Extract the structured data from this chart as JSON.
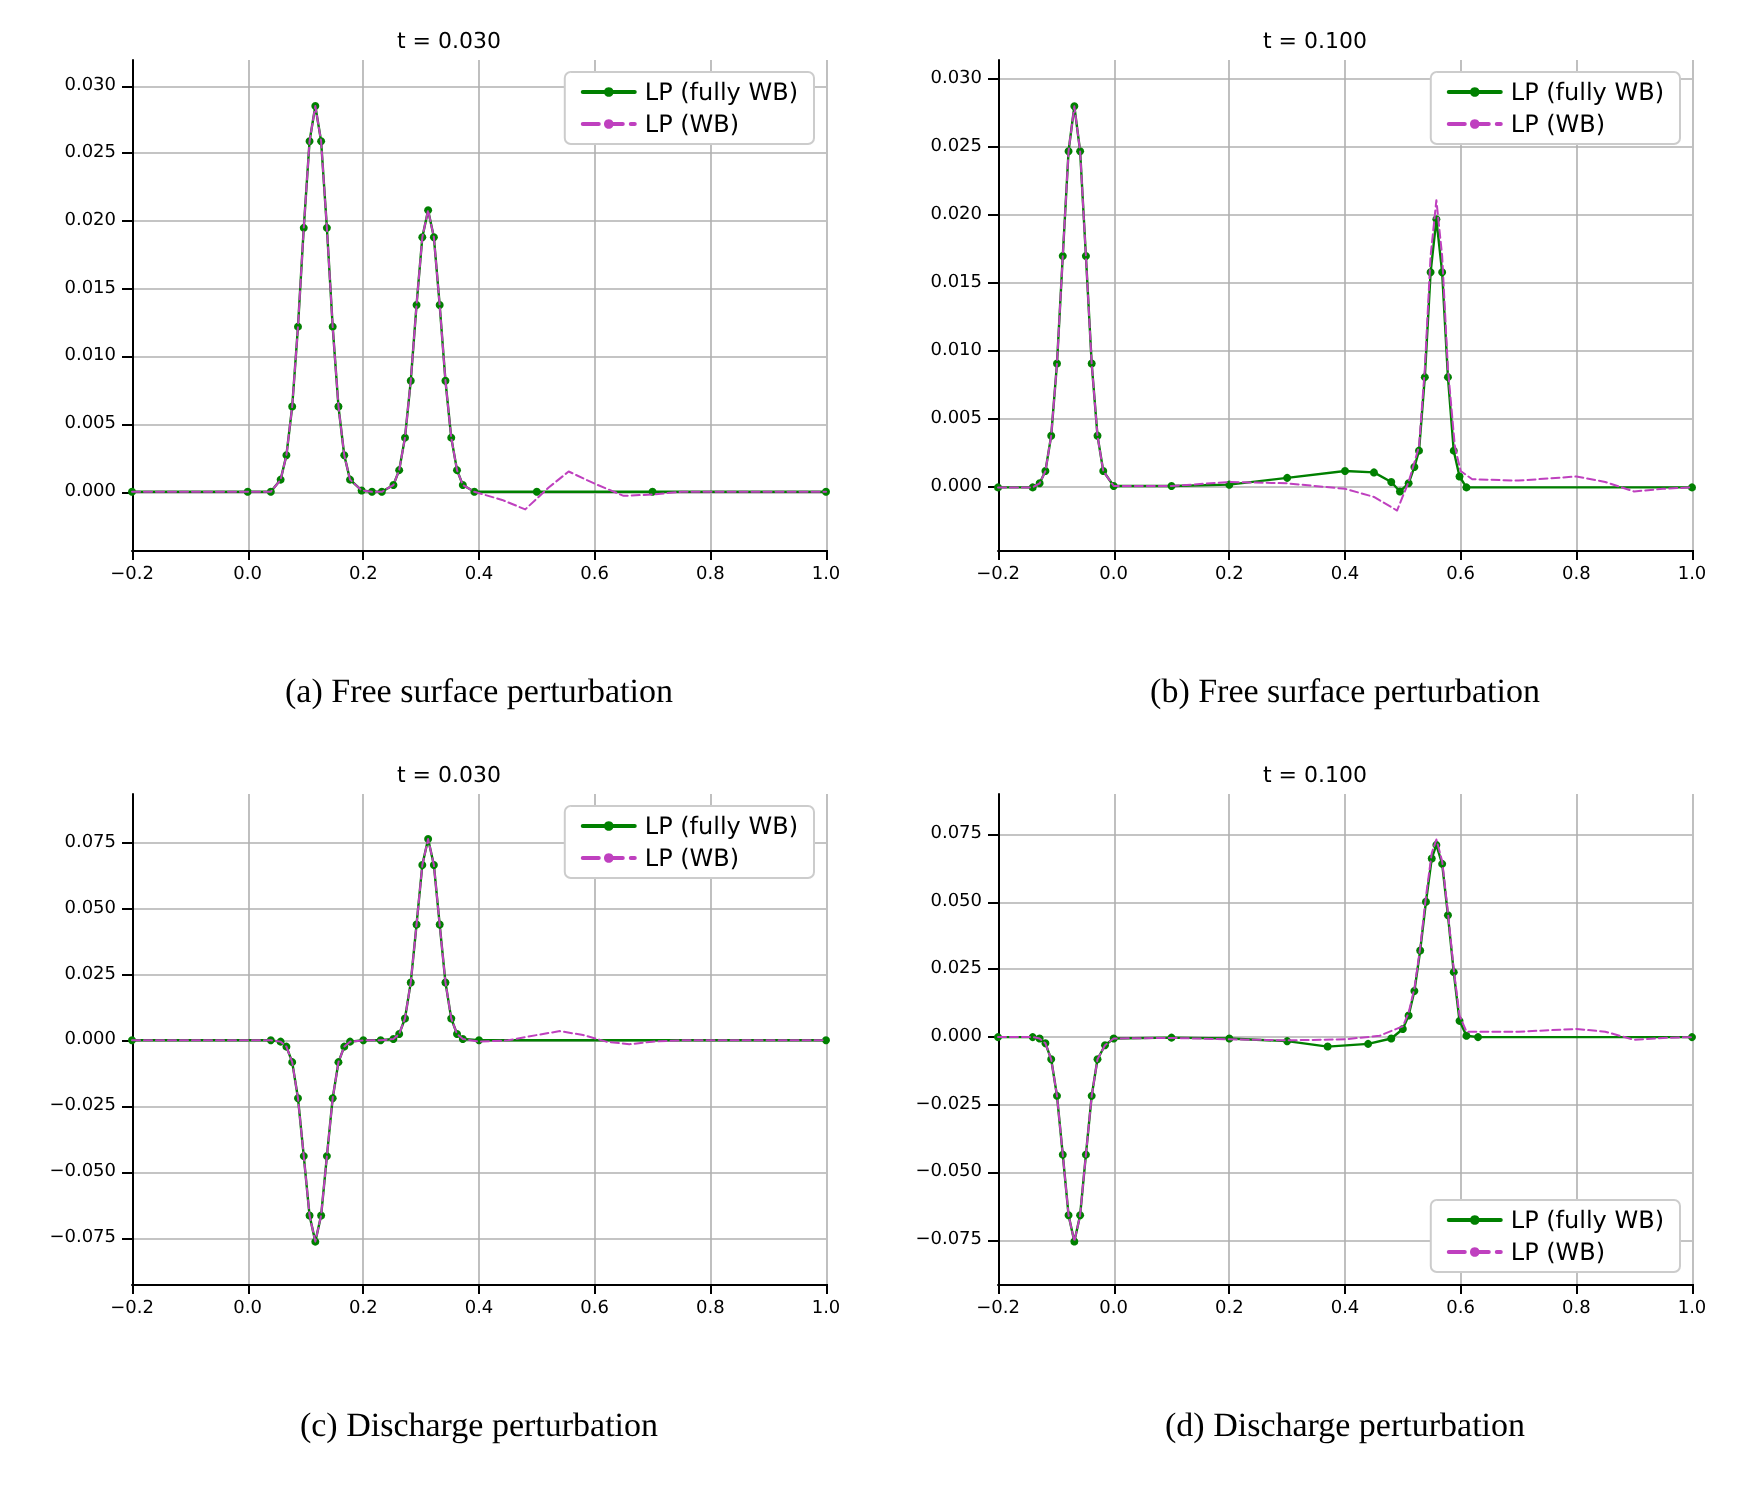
{
  "chart_data": [
    {
      "type": "line",
      "title": "t = 0.030",
      "xlabel": "(a) Free surface perturbation",
      "xlim": [
        -0.2,
        1.0
      ],
      "xticks": [
        {
          "value": -0.2,
          "label": "−0.2"
        },
        {
          "value": 0,
          "label": "0.0"
        },
        {
          "value": 0.2,
          "label": "0.2"
        },
        {
          "value": 0.4,
          "label": "0.4"
        },
        {
          "value": 0.6,
          "label": "0.6"
        },
        {
          "value": 0.8,
          "label": "0.8"
        },
        {
          "value": 1,
          "label": "1.0"
        }
      ],
      "ylim": [
        -0.0043,
        0.0319
      ],
      "yticks": [
        {
          "value": 0,
          "label": "0.000"
        },
        {
          "value": 0.005,
          "label": "0.005"
        },
        {
          "value": 0.01,
          "label": "0.010"
        },
        {
          "value": 0.015,
          "label": "0.015"
        },
        {
          "value": 0.02,
          "label": "0.020"
        },
        {
          "value": 0.025,
          "label": "0.025"
        },
        {
          "value": 0.03,
          "label": "0.030"
        }
      ],
      "grid": true,
      "legend": "top right",
      "series": [
        {
          "name": "LP (fully WB)",
          "color": "#008000",
          "marker": "circle",
          "line_style": "solid",
          "x": [
            -0.2,
            0,
            0.04,
            0.057,
            0.067,
            0.077,
            0.087,
            0.097,
            0.107,
            0.117,
            0.127,
            0.137,
            0.147,
            0.157,
            0.167,
            0.177,
            0.197,
            0.215,
            0.232,
            0.252,
            0.262,
            0.272,
            0.282,
            0.292,
            0.302,
            0.312,
            0.322,
            0.332,
            0.342,
            0.352,
            0.362,
            0.372,
            0.392,
            0.5,
            0.7,
            1.0
          ],
          "values": [
            0,
            0,
            0,
            0.0009,
            0.0027,
            0.0063,
            0.0122,
            0.0195,
            0.0259,
            0.0285,
            0.0259,
            0.0195,
            0.0122,
            0.0063,
            0.0027,
            0.0009,
            0.0001,
            0,
            0,
            0.0005,
            0.0016,
            0.004,
            0.0082,
            0.0138,
            0.0188,
            0.0208,
            0.0188,
            0.0138,
            0.0082,
            0.004,
            0.0016,
            0.0005,
            0,
            0,
            0,
            0
          ]
        },
        {
          "name": "LP (WB)",
          "color": "#bf40bf",
          "marker": "none",
          "line_style": "dashed",
          "x": [
            -0.2,
            0,
            0.04,
            0.057,
            0.067,
            0.077,
            0.087,
            0.097,
            0.107,
            0.117,
            0.127,
            0.137,
            0.147,
            0.157,
            0.167,
            0.177,
            0.197,
            0.215,
            0.232,
            0.252,
            0.262,
            0.272,
            0.282,
            0.292,
            0.302,
            0.312,
            0.322,
            0.332,
            0.342,
            0.352,
            0.362,
            0.372,
            0.392,
            0.44,
            0.48,
            0.52,
            0.555,
            0.6,
            0.65,
            0.7,
            0.75,
            1.0
          ],
          "values": [
            0,
            0,
            0,
            0.0009,
            0.0027,
            0.0063,
            0.0122,
            0.0195,
            0.0259,
            0.0285,
            0.0259,
            0.0195,
            0.0122,
            0.0063,
            0.0027,
            0.0009,
            0.0001,
            0,
            0,
            0.0005,
            0.0016,
            0.004,
            0.0082,
            0.0138,
            0.0188,
            0.0208,
            0.0188,
            0.0138,
            0.0082,
            0.004,
            0.0016,
            0.0005,
            0,
            -0.0006,
            -0.0013,
            0.0003,
            0.0015,
            0.0006,
            -0.0003,
            -0.0002,
            0,
            0
          ]
        }
      ]
    },
    {
      "type": "line",
      "title": "t = 0.100",
      "xlabel": "(b) Free surface perturbation",
      "xlim": [
        -0.2,
        1.0
      ],
      "xticks": [
        {
          "value": -0.2,
          "label": "−0.2"
        },
        {
          "value": 0,
          "label": "0.0"
        },
        {
          "value": 0.2,
          "label": "0.2"
        },
        {
          "value": 0.4,
          "label": "0.4"
        },
        {
          "value": 0.6,
          "label": "0.6"
        },
        {
          "value": 0.8,
          "label": "0.8"
        },
        {
          "value": 1,
          "label": "1.0"
        }
      ],
      "ylim": [
        -0.0046,
        0.0314
      ],
      "yticks": [
        {
          "value": 0,
          "label": "0.000"
        },
        {
          "value": 0.005,
          "label": "0.005"
        },
        {
          "value": 0.01,
          "label": "0.010"
        },
        {
          "value": 0.015,
          "label": "0.015"
        },
        {
          "value": 0.02,
          "label": "0.020"
        },
        {
          "value": 0.025,
          "label": "0.025"
        },
        {
          "value": 0.03,
          "label": "0.030"
        }
      ],
      "grid": true,
      "legend": "top right",
      "series": [
        {
          "name": "LP (fully WB)",
          "color": "#008000",
          "marker": "circle",
          "line_style": "solid",
          "x": [
            -0.2,
            -0.14,
            -0.128,
            -0.118,
            -0.108,
            -0.098,
            -0.088,
            -0.078,
            -0.068,
            -0.058,
            -0.048,
            -0.038,
            -0.028,
            -0.018,
            0.0,
            0.1,
            0.2,
            0.3,
            0.4,
            0.45,
            0.48,
            0.495,
            0.51,
            0.52,
            0.528,
            0.538,
            0.548,
            0.558,
            0.568,
            0.578,
            0.588,
            0.598,
            0.61,
            1.0
          ],
          "values": [
            0,
            0,
            0.0003,
            0.0012,
            0.0038,
            0.0091,
            0.017,
            0.0247,
            0.028,
            0.0247,
            0.017,
            0.0091,
            0.0038,
            0.0012,
            0.0001,
            0.0001,
            0.0002,
            0.0007,
            0.0012,
            0.0011,
            0.0004,
            -0.0003,
            0.0003,
            0.0015,
            0.0027,
            0.0081,
            0.0158,
            0.0197,
            0.0158,
            0.0081,
            0.0027,
            0.0008,
            0,
            0
          ]
        },
        {
          "name": "LP (WB)",
          "color": "#bf40bf",
          "marker": "none",
          "line_style": "dashed",
          "x": [
            -0.2,
            -0.14,
            -0.128,
            -0.118,
            -0.108,
            -0.098,
            -0.088,
            -0.078,
            -0.068,
            -0.058,
            -0.048,
            -0.038,
            -0.028,
            -0.018,
            0.0,
            0.1,
            0.2,
            0.3,
            0.4,
            0.45,
            0.49,
            0.51,
            0.528,
            0.538,
            0.548,
            0.558,
            0.568,
            0.578,
            0.59,
            0.6,
            0.62,
            0.7,
            0.8,
            0.85,
            0.9,
            0.95,
            1.0
          ],
          "values": [
            0,
            0,
            0.0003,
            0.0012,
            0.0038,
            0.0091,
            0.017,
            0.0247,
            0.028,
            0.0247,
            0.017,
            0.0091,
            0.0038,
            0.0012,
            0.0001,
            0.0001,
            0.0004,
            0.0003,
            -0.0001,
            -0.0007,
            -0.0017,
            0.0004,
            0.003,
            0.0087,
            0.017,
            0.0211,
            0.017,
            0.0087,
            0.003,
            0.0012,
            0.0006,
            0.0005,
            0.0008,
            0.0004,
            -0.0003,
            -0.0001,
            0
          ]
        }
      ]
    },
    {
      "type": "line",
      "title": "t = 0.030",
      "xlabel": "(c) Discharge perturbation",
      "xlim": [
        -0.2,
        1.0
      ],
      "xticks": [
        {
          "value": -0.2,
          "label": "−0.2"
        },
        {
          "value": 0,
          "label": "0.0"
        },
        {
          "value": 0.2,
          "label": "0.2"
        },
        {
          "value": 0.4,
          "label": "0.4"
        },
        {
          "value": 0.6,
          "label": "0.6"
        },
        {
          "value": 0.8,
          "label": "0.8"
        },
        {
          "value": 1,
          "label": "1.0"
        }
      ],
      "ylim": [
        -0.0926,
        0.0936
      ],
      "yticks": [
        {
          "value": -0.075,
          "label": "−0.075"
        },
        {
          "value": -0.05,
          "label": "−0.050"
        },
        {
          "value": -0.025,
          "label": "−0.025"
        },
        {
          "value": 0,
          "label": "0.000"
        },
        {
          "value": 0.025,
          "label": "0.025"
        },
        {
          "value": 0.05,
          "label": "0.050"
        },
        {
          "value": 0.075,
          "label": "0.075"
        }
      ],
      "grid": true,
      "legend": "top right",
      "series": [
        {
          "name": "LP (fully WB)",
          "color": "#008000",
          "marker": "circle",
          "line_style": "solid",
          "x": [
            -0.2,
            0.04,
            0.057,
            0.067,
            0.077,
            0.087,
            0.097,
            0.107,
            0.117,
            0.127,
            0.137,
            0.147,
            0.157,
            0.167,
            0.177,
            0.2,
            0.23,
            0.252,
            0.262,
            0.272,
            0.282,
            0.292,
            0.302,
            0.312,
            0.322,
            0.332,
            0.342,
            0.352,
            0.362,
            0.372,
            0.4,
            1.0
          ],
          "values": [
            0,
            0,
            -0.0005,
            -0.0024,
            -0.0083,
            -0.022,
            -0.044,
            -0.0666,
            -0.0765,
            -0.0666,
            -0.044,
            -0.022,
            -0.0083,
            -0.0024,
            -0.0005,
            0,
            0,
            0.0005,
            0.0024,
            0.0083,
            0.022,
            0.044,
            0.0666,
            0.0765,
            0.0666,
            0.044,
            0.022,
            0.0083,
            0.0024,
            0.0005,
            0,
            0
          ]
        },
        {
          "name": "LP (WB)",
          "color": "#bf40bf",
          "marker": "none",
          "line_style": "dashed",
          "x": [
            -0.2,
            0.04,
            0.057,
            0.067,
            0.077,
            0.087,
            0.097,
            0.107,
            0.117,
            0.127,
            0.137,
            0.147,
            0.157,
            0.167,
            0.177,
            0.2,
            0.23,
            0.252,
            0.262,
            0.272,
            0.282,
            0.292,
            0.302,
            0.312,
            0.322,
            0.332,
            0.342,
            0.352,
            0.362,
            0.372,
            0.4,
            0.45,
            0.5,
            0.54,
            0.58,
            0.62,
            0.66,
            0.7,
            0.75,
            1.0
          ],
          "values": [
            0,
            0,
            -0.0005,
            -0.0024,
            -0.0083,
            -0.022,
            -0.044,
            -0.0666,
            -0.0765,
            -0.0666,
            -0.044,
            -0.022,
            -0.0083,
            -0.0024,
            -0.0005,
            0,
            0,
            0.0005,
            0.0024,
            0.0083,
            0.022,
            0.044,
            0.0666,
            0.0765,
            0.0666,
            0.044,
            0.022,
            0.0083,
            0.0024,
            0.0005,
            -0.0005,
            0,
            0.002,
            0.0035,
            0.002,
            -0.0005,
            -0.0015,
            -0.0005,
            0,
            0
          ]
        }
      ]
    },
    {
      "type": "line",
      "title": "t = 0.100",
      "xlabel": "(d) Discharge perturbation",
      "xlim": [
        -0.2,
        1.0
      ],
      "xticks": [
        {
          "value": -0.2,
          "label": "−0.2"
        },
        {
          "value": 0,
          "label": "0.0"
        },
        {
          "value": 0.2,
          "label": "0.2"
        },
        {
          "value": 0.4,
          "label": "0.4"
        },
        {
          "value": 0.6,
          "label": "0.6"
        },
        {
          "value": 0.8,
          "label": "0.8"
        },
        {
          "value": 1,
          "label": "1.0"
        }
      ],
      "ylim": [
        -0.0912,
        0.0898
      ],
      "yticks": [
        {
          "value": -0.075,
          "label": "−0.075"
        },
        {
          "value": -0.05,
          "label": "−0.050"
        },
        {
          "value": -0.025,
          "label": "−0.025"
        },
        {
          "value": 0,
          "label": "0.000"
        },
        {
          "value": 0.025,
          "label": "0.025"
        },
        {
          "value": 0.05,
          "label": "0.050"
        },
        {
          "value": 0.075,
          "label": "0.075"
        }
      ],
      "grid": true,
      "legend": "bottom right",
      "series": [
        {
          "name": "LP (fully WB)",
          "color": "#008000",
          "marker": "circle",
          "line_style": "solid",
          "x": [
            -0.2,
            -0.14,
            -0.128,
            -0.118,
            -0.108,
            -0.098,
            -0.088,
            -0.078,
            -0.068,
            -0.058,
            -0.048,
            -0.038,
            -0.028,
            -0.015,
            0.0,
            0.1,
            0.2,
            0.3,
            0.37,
            0.44,
            0.48,
            0.5,
            0.51,
            0.52,
            0.53,
            0.54,
            0.55,
            0.558,
            0.568,
            0.578,
            0.588,
            0.598,
            0.61,
            0.63,
            1.0
          ],
          "values": [
            0,
            0,
            -0.0005,
            -0.0023,
            -0.0082,
            -0.0217,
            -0.0434,
            -0.0658,
            -0.0755,
            -0.0658,
            -0.0434,
            -0.0217,
            -0.0082,
            -0.003,
            -0.0005,
            -0.0002,
            -0.0005,
            -0.0015,
            -0.0035,
            -0.0025,
            -0.0005,
            0.003,
            0.008,
            0.017,
            0.032,
            0.05,
            0.066,
            0.071,
            0.064,
            0.045,
            0.024,
            0.006,
            0.0005,
            0,
            0
          ]
        },
        {
          "name": "LP (WB)",
          "color": "#bf40bf",
          "marker": "none",
          "line_style": "dashed",
          "x": [
            -0.2,
            -0.14,
            -0.128,
            -0.118,
            -0.108,
            -0.098,
            -0.088,
            -0.078,
            -0.068,
            -0.058,
            -0.048,
            -0.038,
            -0.028,
            -0.015,
            0.0,
            0.1,
            0.2,
            0.3,
            0.4,
            0.46,
            0.5,
            0.51,
            0.52,
            0.53,
            0.54,
            0.55,
            0.558,
            0.568,
            0.578,
            0.588,
            0.598,
            0.61,
            0.7,
            0.8,
            0.85,
            0.9,
            0.95,
            1.0
          ],
          "values": [
            0,
            0,
            -0.0005,
            -0.0023,
            -0.0082,
            -0.0217,
            -0.0434,
            -0.0658,
            -0.0755,
            -0.0658,
            -0.0434,
            -0.0217,
            -0.0082,
            -0.003,
            -0.0005,
            -0.0003,
            -0.0008,
            -0.0012,
            -0.0008,
            0.0005,
            0.004,
            0.009,
            0.018,
            0.033,
            0.052,
            0.068,
            0.073,
            0.065,
            0.046,
            0.025,
            0.008,
            0.002,
            0.002,
            0.003,
            0.002,
            -0.001,
            -0.0003,
            0
          ]
        }
      ]
    }
  ]
}
